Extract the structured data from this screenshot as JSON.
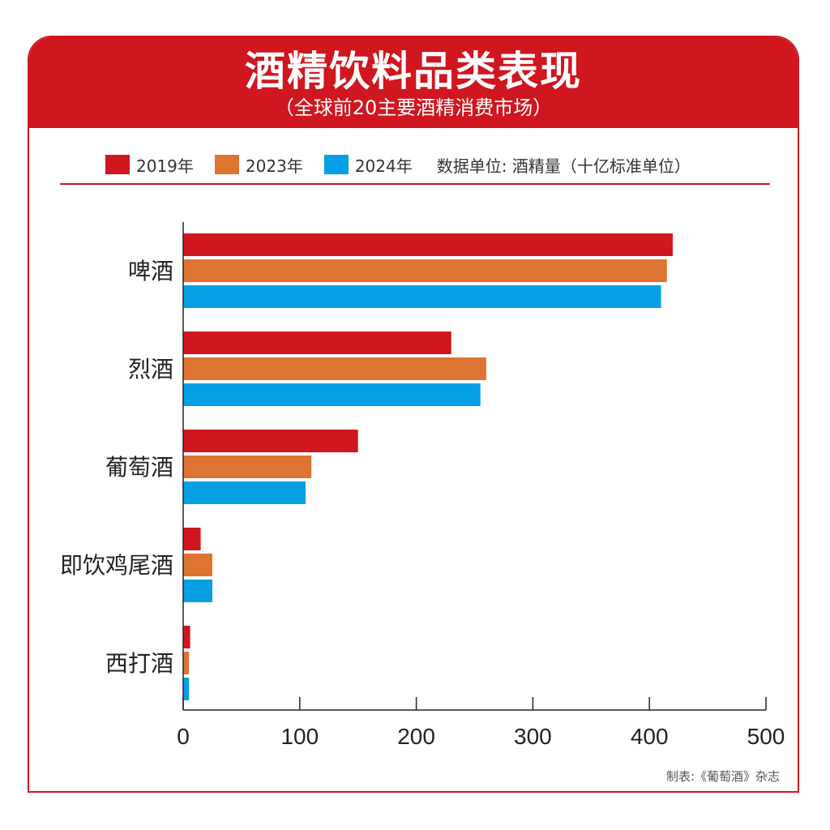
{
  "header": {
    "title": "酒精饮料品类表现",
    "subtitle": "（全球前20主要酒精消费市场）"
  },
  "legend": {
    "items": [
      {
        "label": "2019年",
        "color": "#d0161f"
      },
      {
        "label": "2023年",
        "color": "#dd7432"
      },
      {
        "label": "2024年",
        "color": "#05a0e3"
      }
    ],
    "unit_text": "数据单位: 酒精量（十亿标准单位）"
  },
  "credit": "制表:《葡萄酒》杂志",
  "chart_data": {
    "type": "bar",
    "orientation": "horizontal",
    "categories": [
      "啤酒",
      "烈酒",
      "葡萄酒",
      "即饮鸡尾酒",
      "西打酒"
    ],
    "series": [
      {
        "name": "2019年",
        "color": "#d0161f",
        "values": [
          420,
          230,
          150,
          15,
          6
        ]
      },
      {
        "name": "2023年",
        "color": "#dd7432",
        "values": [
          415,
          260,
          110,
          25,
          5
        ]
      },
      {
        "name": "2024年",
        "color": "#05a0e3",
        "values": [
          410,
          255,
          105,
          25,
          5
        ]
      }
    ],
    "x_ticks": [
      "0",
      "100",
      "200",
      "300",
      "400",
      "500"
    ],
    "xlim": [
      0,
      500
    ],
    "grid": false,
    "legend_position": "top"
  }
}
